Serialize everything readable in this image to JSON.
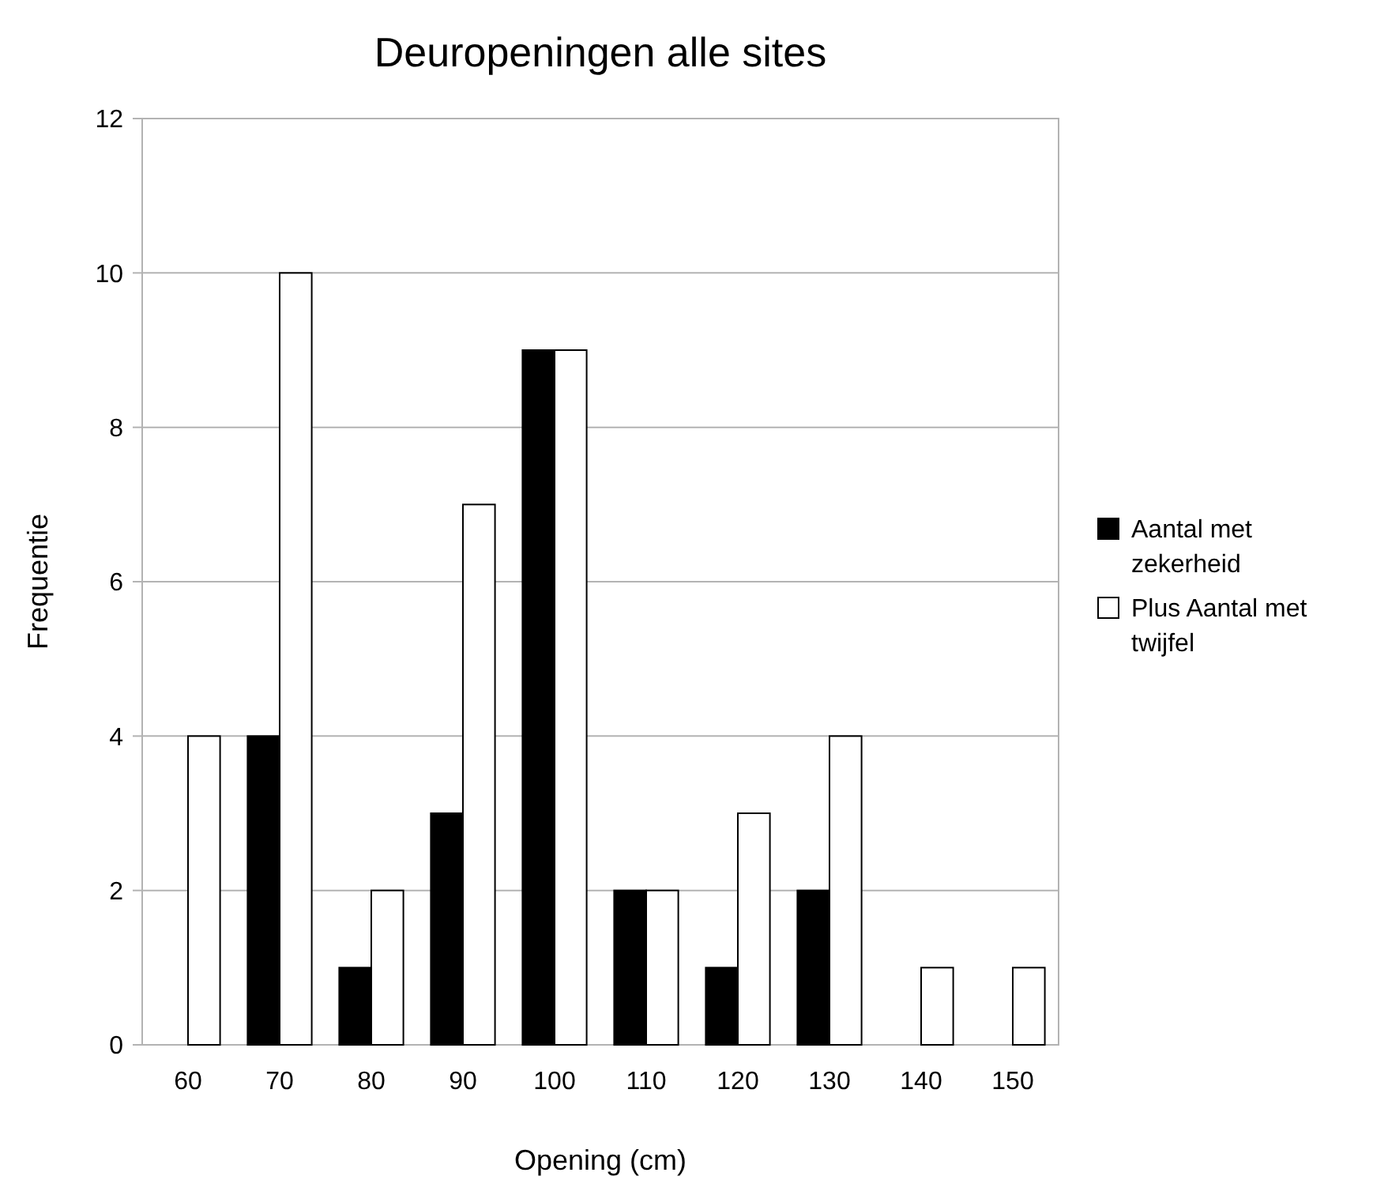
{
  "chart_data": {
    "type": "bar",
    "title": "Deuropeningen alle sites",
    "xlabel": "Opening (cm)",
    "ylabel": "Frequentie",
    "categories": [
      "60",
      "70",
      "80",
      "90",
      "100",
      "110",
      "120",
      "130",
      "140",
      "150"
    ],
    "series": [
      {
        "name": "Aantal met zekerheid",
        "color": "#000000",
        "values": [
          0,
          4,
          1,
          3,
          9,
          2,
          1,
          2,
          0,
          0
        ]
      },
      {
        "name": "Plus Aantal met twijfel",
        "color": "#ffffff",
        "values": [
          4,
          10,
          2,
          7,
          9,
          2,
          3,
          4,
          1,
          1
        ]
      }
    ],
    "ylim": [
      0,
      12
    ],
    "yticks": [
      0,
      2,
      4,
      6,
      8,
      10,
      12
    ],
    "grid": "y",
    "legend": "right"
  }
}
